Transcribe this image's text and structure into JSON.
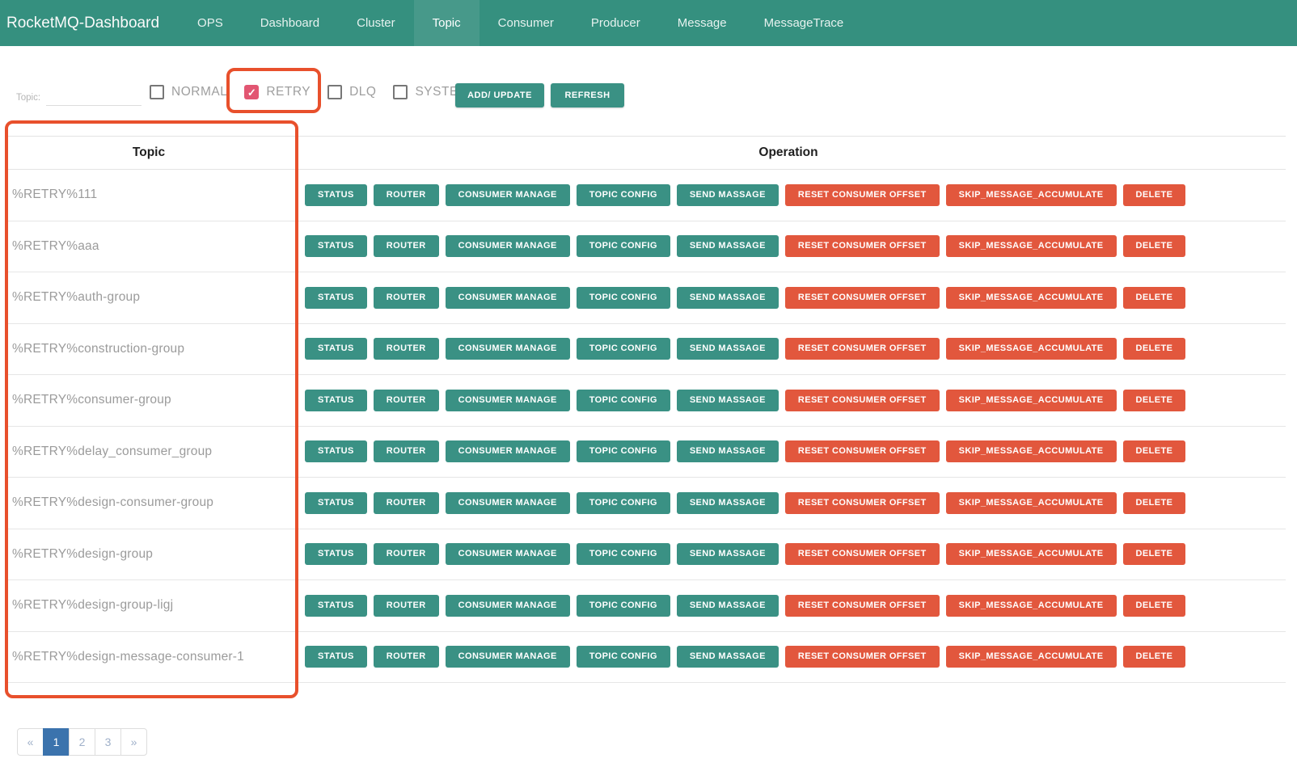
{
  "navbar": {
    "brand": "RocketMQ-Dashboard",
    "items": [
      {
        "label": "OPS",
        "active": false
      },
      {
        "label": "Dashboard",
        "active": false
      },
      {
        "label": "Cluster",
        "active": false
      },
      {
        "label": "Topic",
        "active": true
      },
      {
        "label": "Consumer",
        "active": false
      },
      {
        "label": "Producer",
        "active": false
      },
      {
        "label": "Message",
        "active": false
      },
      {
        "label": "MessageTrace",
        "active": false
      }
    ]
  },
  "filter": {
    "topic_label": "Topic:",
    "input_value": "",
    "check_glyph": "✓",
    "checkboxes": [
      {
        "label": "NORMAL",
        "checked": false
      },
      {
        "label": "RETRY",
        "checked": true
      },
      {
        "label": "DLQ",
        "checked": false
      },
      {
        "label": "SYSTEM",
        "checked": false
      }
    ],
    "add_update_label": "ADD/ UPDATE",
    "refresh_label": "REFRESH"
  },
  "table": {
    "headers": [
      "Topic",
      "Operation"
    ],
    "actions": [
      {
        "label": "STATUS",
        "color": "teal"
      },
      {
        "label": "ROUTER",
        "color": "teal"
      },
      {
        "label": "CONSUMER MANAGE",
        "color": "teal"
      },
      {
        "label": "TOPIC CONFIG",
        "color": "teal"
      },
      {
        "label": "SEND MASSAGE",
        "color": "teal"
      },
      {
        "label": "RESET CONSUMER OFFSET",
        "color": "red"
      },
      {
        "label": "SKIP_MESSAGE_ACCUMULATE",
        "color": "red"
      },
      {
        "label": "DELETE",
        "color": "red"
      }
    ],
    "rows": [
      {
        "topic": "%RETRY%111"
      },
      {
        "topic": "%RETRY%aaa"
      },
      {
        "topic": "%RETRY%auth-group"
      },
      {
        "topic": "%RETRY%construction-group"
      },
      {
        "topic": "%RETRY%consumer-group"
      },
      {
        "topic": "%RETRY%delay_consumer_group"
      },
      {
        "topic": "%RETRY%design-consumer-group"
      },
      {
        "topic": "%RETRY%design-group"
      },
      {
        "topic": "%RETRY%design-group-ligj"
      },
      {
        "topic": "%RETRY%design-message-consumer-1"
      }
    ]
  },
  "pagination": {
    "items": [
      {
        "label": "«",
        "kind": "prev",
        "active": false
      },
      {
        "label": "1",
        "kind": "page",
        "active": true
      },
      {
        "label": "2",
        "kind": "page",
        "active": false
      },
      {
        "label": "3",
        "kind": "page",
        "active": false
      },
      {
        "label": "»",
        "kind": "next",
        "active": false
      }
    ]
  },
  "colors": {
    "navbar_bg": "#35907f",
    "navbar_active_bg": "#47998a",
    "teal_button": "#3a9184",
    "red_button": "#e2573d",
    "checkbox_checked": "#e25672",
    "annotation": "#e8502c",
    "pagination_active": "#3b73ad"
  }
}
